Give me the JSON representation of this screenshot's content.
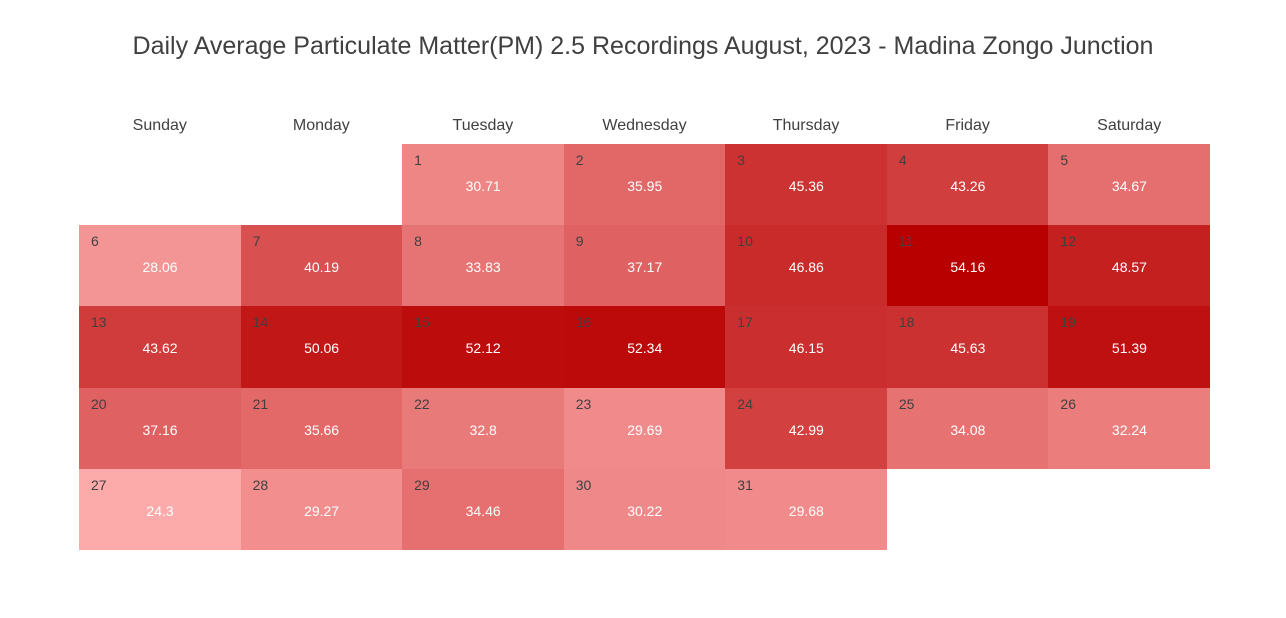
{
  "chart_data": {
    "type": "heatmap",
    "title": "Daily Average Particulate Matter(PM) 2.5 Recordings August, 2023 - Madina Zongo Junction",
    "weekdays": [
      "Sunday",
      "Monday",
      "Tuesday",
      "Wednesday",
      "Thursday",
      "Friday",
      "Saturday"
    ],
    "first_weekday_index": 2,
    "value_range": [
      24.3,
      54.16
    ],
    "color_scale": [
      "#fdaaaa",
      "#b80000"
    ],
    "days": [
      {
        "day": "1",
        "value": "30.71"
      },
      {
        "day": "2",
        "value": "35.95"
      },
      {
        "day": "3",
        "value": "45.36"
      },
      {
        "day": "4",
        "value": "43.26"
      },
      {
        "day": "5",
        "value": "34.67"
      },
      {
        "day": "6",
        "value": "28.06"
      },
      {
        "day": "7",
        "value": "40.19"
      },
      {
        "day": "8",
        "value": "33.83"
      },
      {
        "day": "9",
        "value": "37.17"
      },
      {
        "day": "10",
        "value": "46.86"
      },
      {
        "day": "11",
        "value": "54.16"
      },
      {
        "day": "12",
        "value": "48.57"
      },
      {
        "day": "13",
        "value": "43.62"
      },
      {
        "day": "14",
        "value": "50.06"
      },
      {
        "day": "15",
        "value": "52.12"
      },
      {
        "day": "16",
        "value": "52.34"
      },
      {
        "day": "17",
        "value": "46.15"
      },
      {
        "day": "18",
        "value": "45.63"
      },
      {
        "day": "19",
        "value": "51.39"
      },
      {
        "day": "20",
        "value": "37.16"
      },
      {
        "day": "21",
        "value": "35.66"
      },
      {
        "day": "22",
        "value": "32.8"
      },
      {
        "day": "23",
        "value": "29.69"
      },
      {
        "day": "24",
        "value": "42.99"
      },
      {
        "day": "25",
        "value": "34.08"
      },
      {
        "day": "26",
        "value": "32.24"
      },
      {
        "day": "27",
        "value": "24.3"
      },
      {
        "day": "28",
        "value": "29.27"
      },
      {
        "day": "29",
        "value": "34.46"
      },
      {
        "day": "30",
        "value": "30.22"
      },
      {
        "day": "31",
        "value": "29.68"
      }
    ]
  }
}
